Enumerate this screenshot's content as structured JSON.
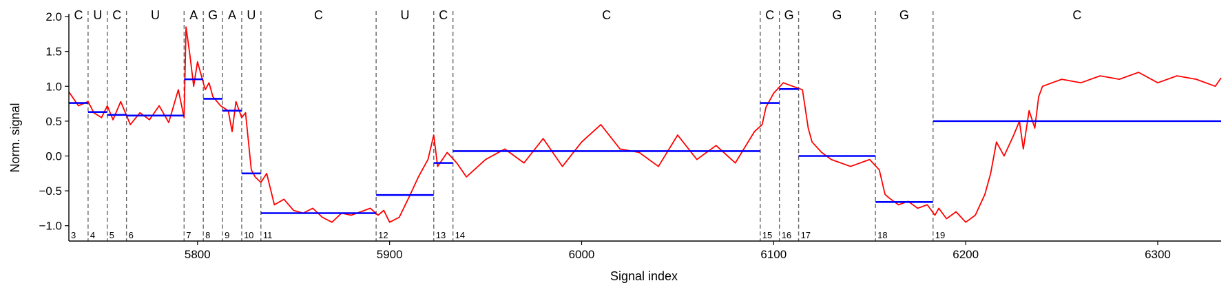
{
  "chart_data": {
    "type": "line",
    "xlabel": "Signal index",
    "ylabel": "Norm. signal",
    "xlim": [
      5733,
      6333
    ],
    "ylim": [
      -1.22,
      2.02
    ],
    "xticks": [
      5800,
      5900,
      6000,
      6100,
      6200,
      6300
    ],
    "yticks": [
      -1.0,
      -0.5,
      0.0,
      0.5,
      1.0,
      1.5,
      2.0
    ],
    "ytick_labels": [
      "−1.0",
      "−0.5",
      "0.0",
      "0.5",
      "1.0",
      "1.5",
      "2.0"
    ],
    "grid": false,
    "colors": {
      "signal": "#ff0000",
      "segment_mean": "#0000ff",
      "boundary": "#666666"
    },
    "series": [
      {
        "x": [
          5733,
          5738,
          5743,
          5746,
          5750,
          5753,
          5756,
          5760,
          5765,
          5770,
          5775,
          5780,
          5785,
          5790,
          5793,
          5794,
          5796,
          5798,
          5800,
          5804,
          5806,
          5808,
          5812,
          5816,
          5818,
          5820,
          5823,
          5825,
          5828,
          5830,
          5833,
          5836,
          5840,
          5845,
          5850,
          5855,
          5860,
          5865,
          5870,
          5875,
          5880,
          5885,
          5890,
          5894,
          5897,
          5900,
          5905,
          5910,
          5915,
          5920,
          5923,
          5925,
          5930,
          5935,
          5940,
          5950,
          5960,
          5970,
          5980,
          5990,
          6000,
          6010,
          6020,
          6030,
          6040,
          6050,
          6060,
          6070,
          6080,
          6090,
          6094,
          6096,
          6100,
          6105,
          6110,
          6115,
          6118,
          6120,
          6125,
          6130,
          6140,
          6150,
          6155,
          6158,
          6160,
          6165,
          6170,
          6175,
          6180,
          6184,
          6186,
          6190,
          6195,
          6200,
          6205,
          6210,
          6213,
          6216,
          6220,
          6225,
          6228,
          6230,
          6233,
          6236,
          6238,
          6240,
          6245,
          6250,
          6260,
          6270,
          6280,
          6290,
          6300,
          6310,
          6320,
          6330,
          6333
        ],
        "y": [
          0.92,
          0.72,
          0.78,
          0.62,
          0.55,
          0.72,
          0.52,
          0.78,
          0.45,
          0.62,
          0.52,
          0.72,
          0.48,
          0.95,
          0.55,
          1.85,
          1.45,
          1.0,
          1.35,
          0.95,
          1.05,
          0.85,
          0.72,
          0.65,
          0.35,
          0.78,
          0.55,
          0.62,
          -0.2,
          -0.3,
          -0.38,
          -0.25,
          -0.7,
          -0.62,
          -0.78,
          -0.82,
          -0.75,
          -0.88,
          -0.95,
          -0.82,
          -0.85,
          -0.8,
          -0.75,
          -0.85,
          -0.78,
          -0.95,
          -0.88,
          -0.6,
          -0.3,
          -0.05,
          0.3,
          -0.15,
          0.05,
          -0.1,
          -0.3,
          -0.05,
          0.1,
          -0.1,
          0.25,
          -0.15,
          0.2,
          0.45,
          0.1,
          0.05,
          -0.15,
          0.3,
          -0.05,
          0.15,
          -0.1,
          0.35,
          0.45,
          0.7,
          0.9,
          1.05,
          1.0,
          0.95,
          0.4,
          0.2,
          0.05,
          -0.05,
          -0.15,
          -0.05,
          -0.2,
          -0.55,
          -0.6,
          -0.7,
          -0.65,
          -0.75,
          -0.7,
          -0.85,
          -0.75,
          -0.9,
          -0.8,
          -0.95,
          -0.85,
          -0.55,
          -0.25,
          0.2,
          0.0,
          0.3,
          0.5,
          0.1,
          0.65,
          0.4,
          0.85,
          1.0,
          1.05,
          1.1,
          1.05,
          1.15,
          1.1,
          1.2,
          1.05,
          1.15,
          1.1,
          1.0,
          1.12
        ]
      }
    ],
    "segments": [
      {
        "start": 5733,
        "end": 5743,
        "mean": 0.76,
        "base": "C",
        "label": "3"
      },
      {
        "start": 5743,
        "end": 5753,
        "mean": 0.63,
        "base": "U",
        "label": "4"
      },
      {
        "start": 5753,
        "end": 5763,
        "mean": 0.59,
        "base": "C",
        "label": "5"
      },
      {
        "start": 5763,
        "end": 5793,
        "mean": 0.58,
        "base": "U",
        "label": "6"
      },
      {
        "start": 5793,
        "end": 5803,
        "mean": 1.1,
        "base": "A",
        "label": "7"
      },
      {
        "start": 5803,
        "end": 5813,
        "mean": 0.82,
        "base": "G",
        "label": "8"
      },
      {
        "start": 5813,
        "end": 5823,
        "mean": 0.65,
        "base": "A",
        "label": "9"
      },
      {
        "start": 5823,
        "end": 5833,
        "mean": -0.25,
        "base": "U",
        "label": "10"
      },
      {
        "start": 5833,
        "end": 5893,
        "mean": -0.82,
        "base": "C",
        "label": "11"
      },
      {
        "start": 5893,
        "end": 5923,
        "mean": -0.56,
        "base": "U",
        "label": "12"
      },
      {
        "start": 5923,
        "end": 5933,
        "mean": -0.1,
        "base": "C",
        "label": "13"
      },
      {
        "start": 5933,
        "end": 6093,
        "mean": 0.07,
        "base": "C",
        "label": "14"
      },
      {
        "start": 6093,
        "end": 6103,
        "mean": 0.76,
        "base": "C",
        "label": "15"
      },
      {
        "start": 6103,
        "end": 6113,
        "mean": 0.96,
        "base": "G",
        "label": "16"
      },
      {
        "start": 6113,
        "end": 6153,
        "mean": 0.0,
        "base": "G",
        "label": "17"
      },
      {
        "start": 6153,
        "end": 6183,
        "mean": -0.66,
        "base": "G",
        "label": "18"
      },
      {
        "start": 6183,
        "end": 6333,
        "mean": 0.5,
        "base": "C",
        "label": "19"
      }
    ]
  }
}
